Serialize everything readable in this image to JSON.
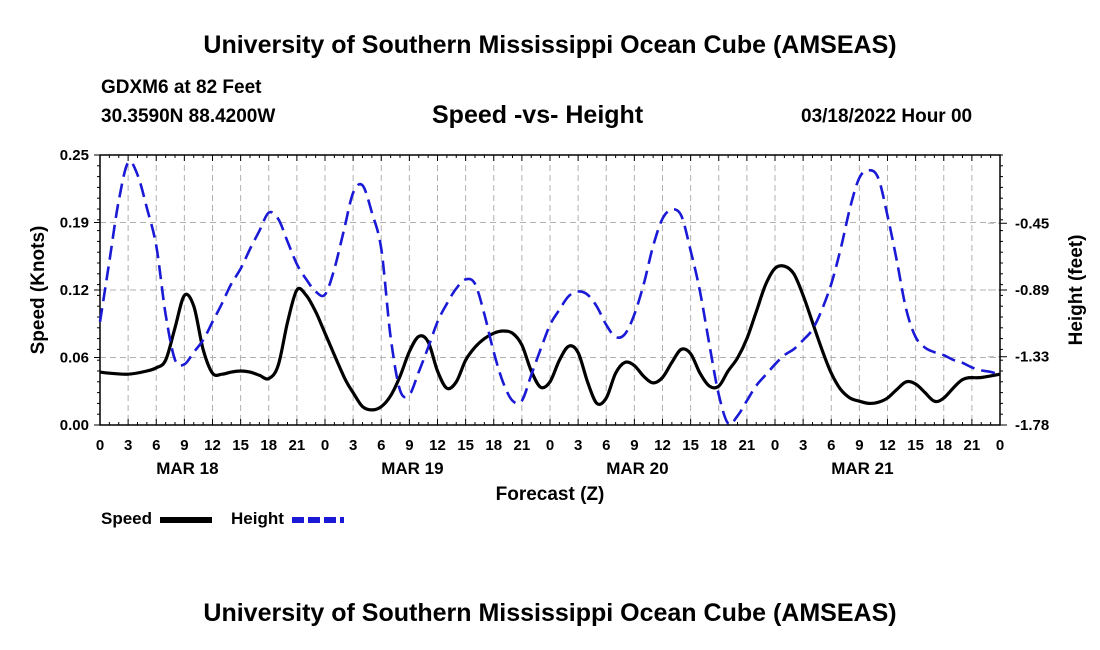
{
  "header": {
    "title": "University of Southern Mississippi Ocean Cube (AMSEAS)",
    "station": "GDXM6 at 82 Feet",
    "coords": "30.3590N  88.4200W",
    "subtitle": "Speed -vs- Height",
    "datetime": "03/18/2022 Hour 00"
  },
  "footer": {
    "title": "University of Southern Mississippi Ocean Cube (AMSEAS)"
  },
  "legend": {
    "speed": "Speed",
    "height": "Height"
  },
  "colors": {
    "speed": "#000000",
    "height": "#1a1ad6",
    "grid": "#b0b0b0"
  },
  "chart_data": {
    "type": "line",
    "title": "Speed -vs- Height",
    "xlabel": "Forecast (Z)",
    "ylabel": "Speed (Knots)",
    "y2label": "Height (feet)",
    "xlim": [
      0,
      96
    ],
    "ylim": [
      0,
      0.25
    ],
    "y2lim": [
      -1.78,
      -0.0
    ],
    "yticks": [
      "0.00",
      "0.06",
      "0.12",
      "0.19",
      "0.25"
    ],
    "ytick_values": [
      0,
      0.0625,
      0.125,
      0.1875,
      0.25
    ],
    "y2ticks": [
      "-0.45",
      "-0.89",
      "-1.33",
      "-1.78"
    ],
    "xticks": [
      0,
      3,
      6,
      9,
      12,
      15,
      18,
      21,
      24,
      27,
      30,
      33,
      36,
      39,
      42,
      45,
      48,
      51,
      54,
      57,
      60,
      63,
      66,
      69,
      72,
      75,
      78,
      81,
      84,
      87,
      90,
      93,
      96
    ],
    "xtick_labels": [
      "0",
      "3",
      "6",
      "9",
      "12",
      "15",
      "18",
      "21",
      "0",
      "3",
      "6",
      "9",
      "12",
      "15",
      "18",
      "21",
      "0",
      "3",
      "6",
      "9",
      "12",
      "15",
      "18",
      "21",
      "0",
      "3",
      "6",
      "9",
      "12",
      "15",
      "18",
      "21",
      "0"
    ],
    "date_labels": [
      {
        "label": "MAR 18",
        "x": 9
      },
      {
        "label": "MAR 19",
        "x": 33
      },
      {
        "label": "MAR 20",
        "x": 57
      },
      {
        "label": "MAR 21",
        "x": 81
      }
    ],
    "series": [
      {
        "name": "Speed",
        "axis": "left",
        "style": "solid",
        "x": [
          0,
          1,
          3,
          5,
          6,
          7,
          8,
          9,
          10,
          11,
          12,
          13,
          14,
          15,
          16,
          17,
          18,
          19,
          20,
          21,
          22,
          23,
          24,
          26,
          27,
          28,
          29,
          30,
          31,
          32,
          33,
          34,
          35,
          36,
          37,
          38,
          39,
          40,
          41,
          42,
          43,
          44,
          45,
          46,
          47,
          48,
          49,
          50,
          51,
          52,
          53,
          54,
          55,
          56,
          57,
          58,
          59,
          60,
          61,
          62,
          63,
          64,
          65,
          66,
          67,
          68,
          69,
          70,
          71,
          72,
          73,
          74,
          75,
          76,
          77,
          78,
          79,
          80,
          81,
          82,
          83,
          84,
          85,
          86,
          87,
          88,
          89,
          90,
          92,
          94,
          96
        ],
        "values": [
          0.049,
          0.048,
          0.047,
          0.05,
          0.053,
          0.06,
          0.09,
          0.12,
          0.11,
          0.07,
          0.048,
          0.047,
          0.049,
          0.05,
          0.049,
          0.046,
          0.043,
          0.055,
          0.095,
          0.125,
          0.12,
          0.105,
          0.085,
          0.045,
          0.03,
          0.017,
          0.014,
          0.017,
          0.027,
          0.045,
          0.068,
          0.082,
          0.077,
          0.05,
          0.034,
          0.04,
          0.06,
          0.072,
          0.08,
          0.085,
          0.087,
          0.085,
          0.074,
          0.05,
          0.035,
          0.04,
          0.06,
          0.073,
          0.067,
          0.04,
          0.02,
          0.025,
          0.048,
          0.058,
          0.055,
          0.045,
          0.039,
          0.044,
          0.058,
          0.07,
          0.066,
          0.048,
          0.036,
          0.036,
          0.05,
          0.062,
          0.08,
          0.105,
          0.13,
          0.145,
          0.147,
          0.14,
          0.12,
          0.095,
          0.07,
          0.048,
          0.033,
          0.025,
          0.022,
          0.02,
          0.021,
          0.025,
          0.033,
          0.04,
          0.038,
          0.03,
          0.022,
          0.025,
          0.042,
          0.044,
          0.047
        ]
      },
      {
        "name": "Height",
        "axis": "right",
        "style": "dashed",
        "x": [
          0,
          1,
          2,
          3,
          4,
          5,
          6,
          7,
          8,
          9,
          10,
          11,
          12,
          13,
          14,
          15,
          16,
          17,
          18,
          19,
          20,
          21,
          22,
          23,
          24,
          25,
          26,
          27,
          28,
          29,
          30,
          31,
          32,
          33,
          34,
          35,
          36,
          37,
          38,
          39,
          40,
          41,
          42,
          43,
          44,
          45,
          46,
          47,
          48,
          49,
          50,
          51,
          52,
          53,
          54,
          55,
          56,
          57,
          58,
          59,
          60,
          61,
          62,
          63,
          64,
          65,
          66,
          67,
          68,
          69,
          70,
          71,
          72,
          73,
          74,
          75,
          76,
          77,
          78,
          79,
          80,
          81,
          82,
          83,
          84,
          85,
          86,
          87,
          88,
          89,
          90,
          91,
          92,
          93,
          94,
          95,
          96
        ],
        "values": [
          -1.1,
          -0.7,
          -0.3,
          -0.05,
          -0.13,
          -0.35,
          -0.6,
          -1.05,
          -1.35,
          -1.38,
          -1.3,
          -1.22,
          -1.1,
          -0.98,
          -0.85,
          -0.75,
          -0.62,
          -0.5,
          -0.38,
          -0.42,
          -0.57,
          -0.72,
          -0.82,
          -0.9,
          -0.92,
          -0.75,
          -0.5,
          -0.25,
          -0.2,
          -0.38,
          -0.62,
          -1.2,
          -1.55,
          -1.58,
          -1.43,
          -1.27,
          -1.1,
          -0.98,
          -0.88,
          -0.82,
          -0.85,
          -1.05,
          -1.3,
          -1.5,
          -1.62,
          -1.62,
          -1.45,
          -1.28,
          -1.12,
          -1.02,
          -0.93,
          -0.9,
          -0.92,
          -1.0,
          -1.12,
          -1.2,
          -1.18,
          -1.05,
          -0.85,
          -0.6,
          -0.42,
          -0.36,
          -0.4,
          -0.63,
          -0.9,
          -1.25,
          -1.58,
          -1.77,
          -1.72,
          -1.62,
          -1.52,
          -1.45,
          -1.38,
          -1.32,
          -1.28,
          -1.22,
          -1.15,
          -1.02,
          -0.85,
          -0.62,
          -0.35,
          -0.15,
          -0.1,
          -0.15,
          -0.4,
          -0.7,
          -1.02,
          -1.2,
          -1.27,
          -1.3,
          -1.32,
          -1.35,
          -1.37,
          -1.4,
          -1.42,
          -1.43,
          -1.45
        ]
      }
    ]
  }
}
